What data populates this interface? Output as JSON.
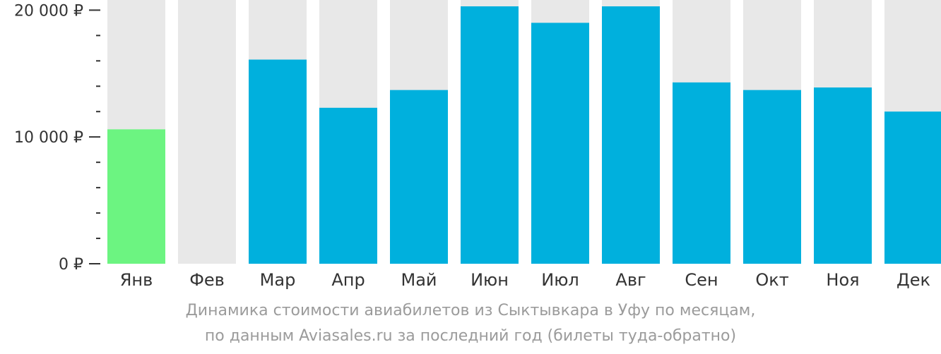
{
  "chart_data": {
    "type": "bar",
    "categories": [
      "Янв",
      "Фев",
      "Мар",
      "Апр",
      "Май",
      "Июн",
      "Июл",
      "Авг",
      "Сен",
      "Окт",
      "Ноя",
      "Дек"
    ],
    "values": [
      10600,
      null,
      16100,
      12300,
      13700,
      20300,
      19000,
      20300,
      14300,
      13700,
      13900,
      12000
    ],
    "ylim": [
      0,
      20800
    ],
    "yticks": [
      {
        "value": 0,
        "label": "0 ₽"
      },
      {
        "value": 10000,
        "label": "10 000 ₽"
      },
      {
        "value": 20000,
        "label": "20 000 ₽"
      }
    ],
    "minor_tick_step": 2000,
    "highlight_index": 0,
    "colors": {
      "bar": "#00b0dd",
      "highlight": "#6cf481",
      "background_column": "#e8e8e8",
      "axis": "#333333"
    }
  },
  "caption": {
    "line1": "Динамика стоимости авиабилетов из Сыктывкара в Уфу по месяцам,",
    "line2": "по данным Aviasales.ru за последний год (билеты туда-обратно)"
  }
}
